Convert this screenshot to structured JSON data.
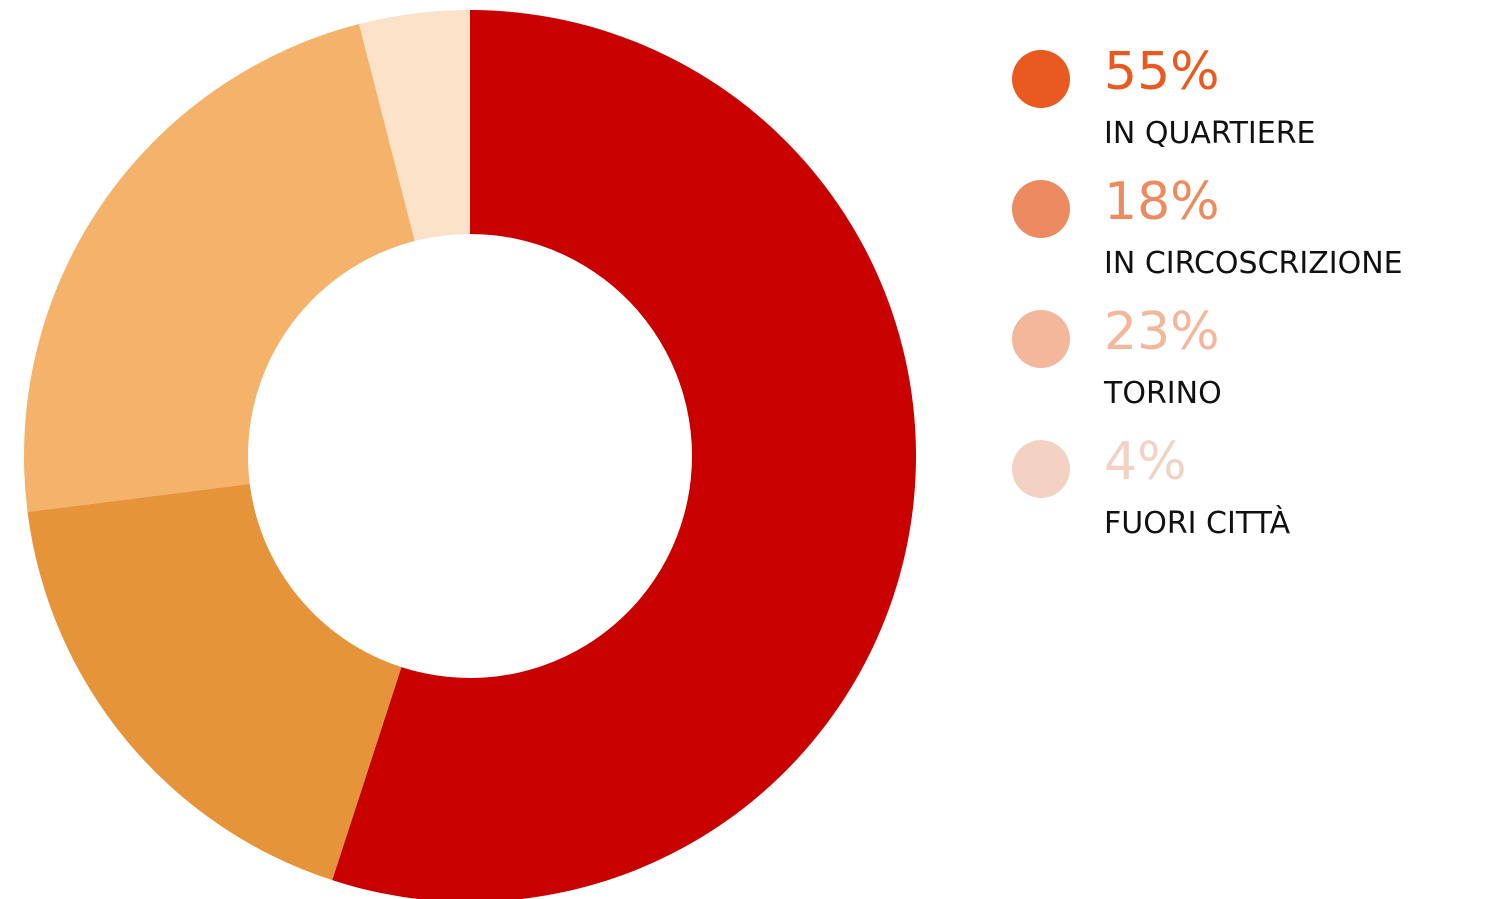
{
  "chart_data": {
    "type": "pie",
    "variant": "donut",
    "title": "",
    "slices": [
      {
        "label": "IN QUARTIERE",
        "value": 55,
        "display": "55%",
        "color": "#c80000",
        "legend_color": "#e85a1f"
      },
      {
        "label": "IN CIRCOSCRIZIONE",
        "value": 18,
        "display": "18%",
        "color": "#e6943a",
        "legend_color": "#ec8a60"
      },
      {
        "label": "TORINO",
        "value": 23,
        "display": "23%",
        "color": "#f5b26b",
        "legend_color": "#f3b79b"
      },
      {
        "label": "FUORI CITTÀ",
        "value": 4,
        "display": "4%",
        "color": "#fde2ca",
        "legend_color": "#f3d2c4"
      }
    ],
    "start_angle_deg": 0,
    "direction": "clockwise",
    "legend_placement": "right"
  }
}
